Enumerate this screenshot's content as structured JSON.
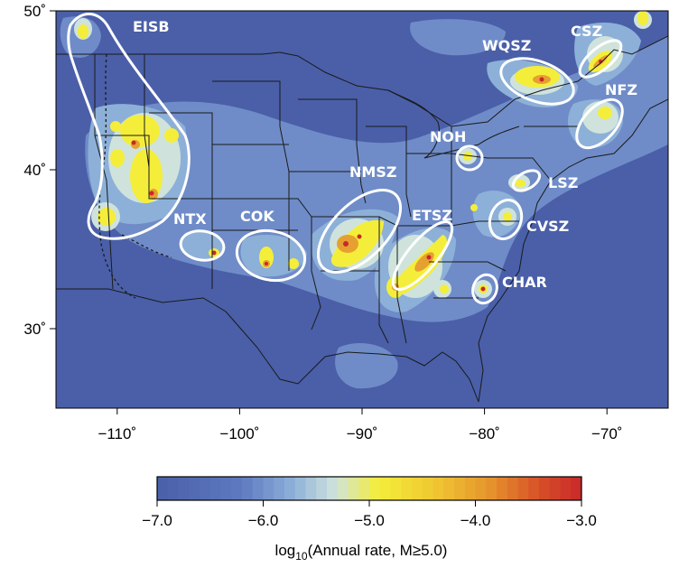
{
  "map": {
    "lon_range": [
      -115,
      -65
    ],
    "lat_range": [
      25,
      50
    ],
    "x_ticks": [
      {
        "value": -110,
        "label": "−110˚"
      },
      {
        "value": -100,
        "label": "−100˚"
      },
      {
        "value": -90,
        "label": "−90˚"
      },
      {
        "value": -80,
        "label": "−80˚"
      },
      {
        "value": -70,
        "label": "−70˚"
      }
    ],
    "y_ticks": [
      {
        "value": 50,
        "label": "50˚"
      },
      {
        "value": 40,
        "label": "40˚"
      },
      {
        "value": 30,
        "label": "30˚"
      }
    ],
    "colors": {
      "background": "#4a5fa8",
      "low": "#5f7ac0",
      "mid_low": "#8db0d8",
      "mid": "#cfe3dc",
      "yellow": "#f4ee3a",
      "orange": "#e6a030",
      "red": "#c8282a",
      "zone_outline": "#ffffff"
    },
    "zones": [
      {
        "id": "EISB",
        "label": "EISB"
      },
      {
        "id": "NTX",
        "label": "NTX"
      },
      {
        "id": "COK",
        "label": "COK"
      },
      {
        "id": "NMSZ",
        "label": "NMSZ"
      },
      {
        "id": "ETSZ",
        "label": "ETSZ"
      },
      {
        "id": "NOH",
        "label": "NOH"
      },
      {
        "id": "WQSZ",
        "label": "WQSZ"
      },
      {
        "id": "CSZ",
        "label": "CSZ"
      },
      {
        "id": "NFZ",
        "label": "NFZ"
      },
      {
        "id": "LSZ",
        "label": "LSZ"
      },
      {
        "id": "CVSZ",
        "label": "CVSZ"
      },
      {
        "id": "CHAR",
        "label": "CHAR"
      }
    ]
  },
  "colorbar": {
    "ticks": [
      {
        "value": -7.0,
        "label": "−7.0"
      },
      {
        "value": -6.0,
        "label": "−6.0"
      },
      {
        "value": -5.0,
        "label": "−5.0"
      },
      {
        "value": -4.0,
        "label": "−4.0"
      },
      {
        "value": -3.0,
        "label": "−3.0"
      }
    ],
    "range": [
      -7.0,
      -3.0
    ],
    "title_prefix": "log",
    "title_sub": "10",
    "title_suffix": "(Annual rate, M≥5.0)"
  }
}
